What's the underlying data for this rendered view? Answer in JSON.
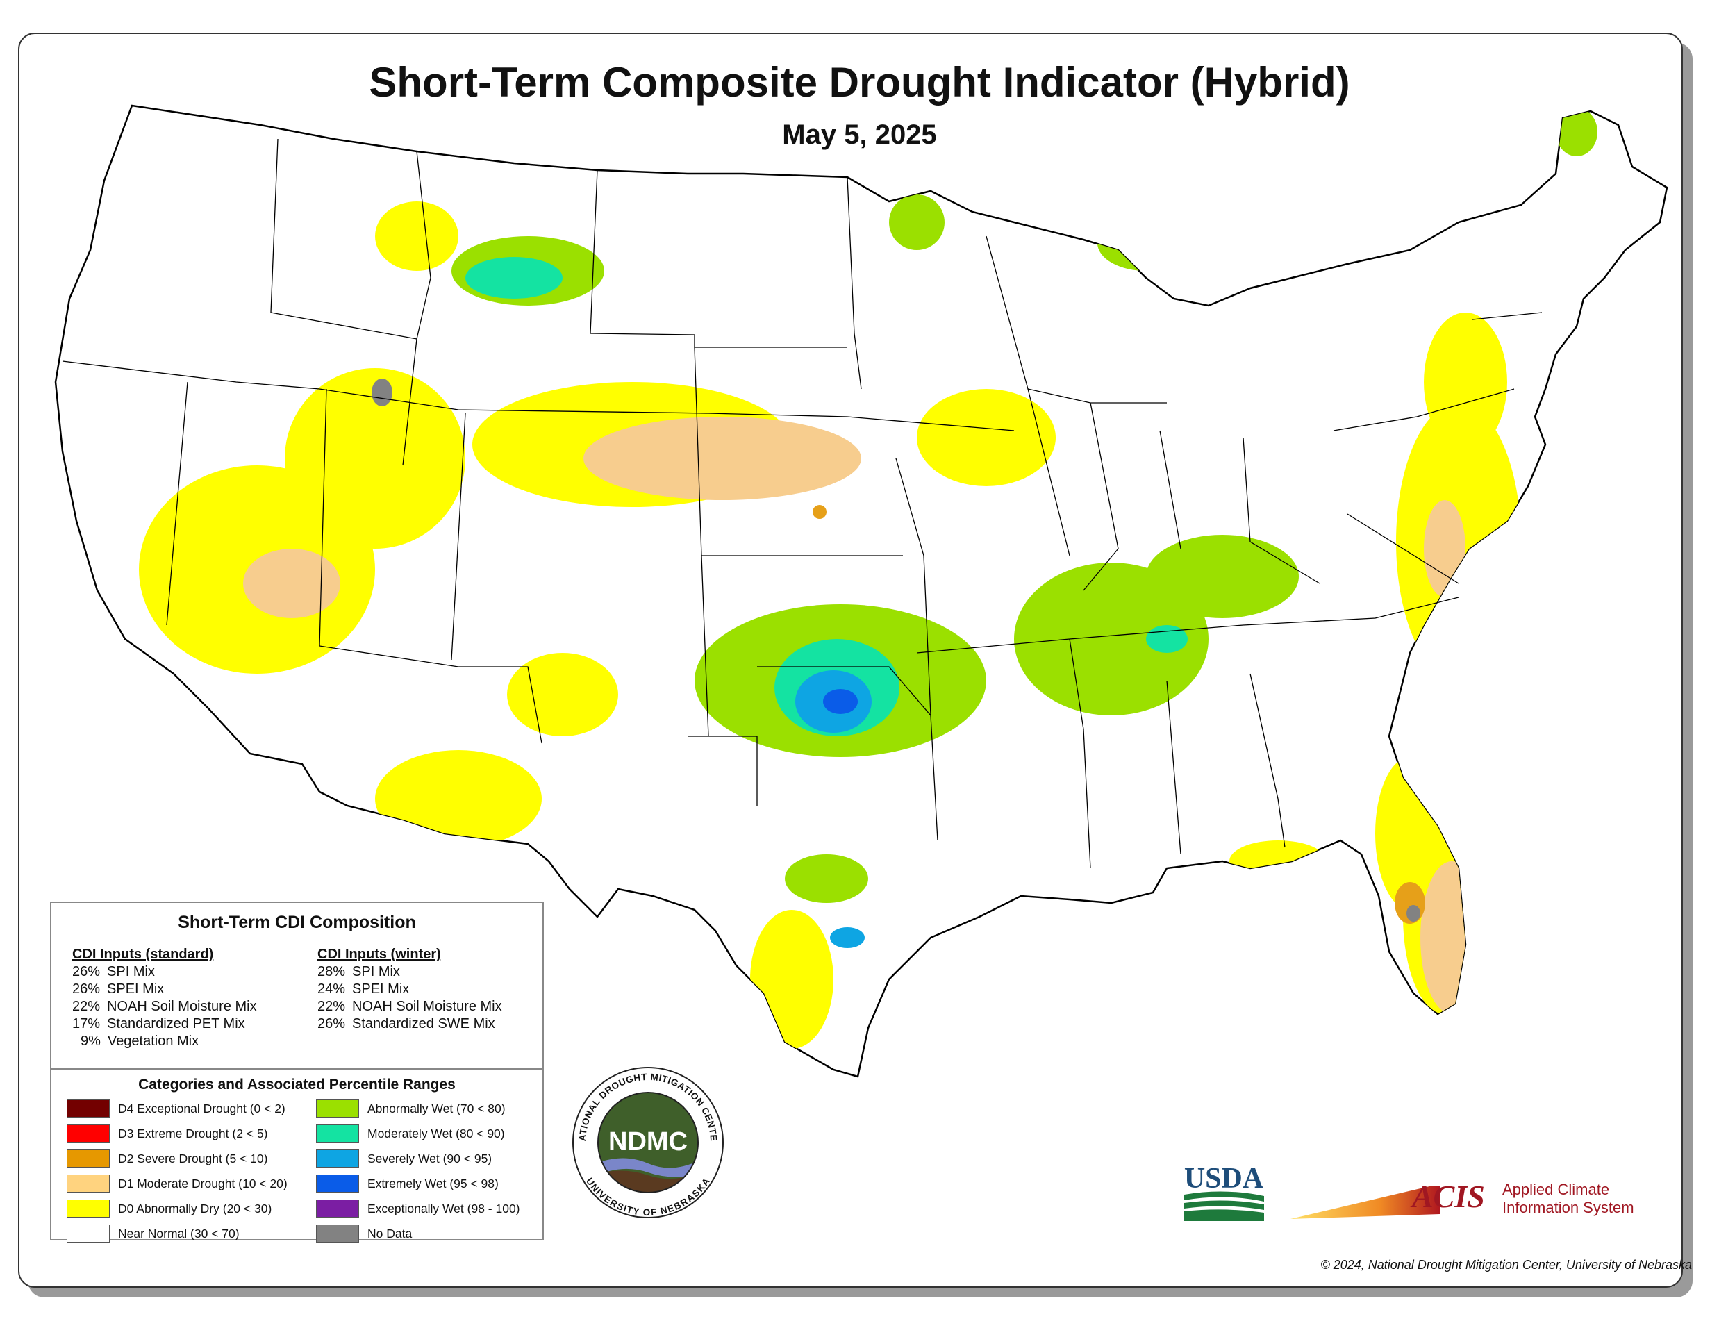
{
  "title": "Short-Term Composite Drought Indicator (Hybrid)",
  "date": "May 5, 2025",
  "composition": {
    "heading": "Short-Term CDI Composition",
    "standard": {
      "heading": "CDI Inputs (standard)",
      "rows": [
        {
          "pct": "26%",
          "label": "SPI Mix"
        },
        {
          "pct": "26%",
          "label": "SPEI Mix"
        },
        {
          "pct": "22%",
          "label": "NOAH Soil Moisture Mix"
        },
        {
          "pct": "17%",
          "label": "Standardized PET Mix"
        },
        {
          "pct": "9%",
          "label": "Vegetation Mix"
        }
      ]
    },
    "winter": {
      "heading": "CDI Inputs (winter)",
      "rows": [
        {
          "pct": "28%",
          "label": "SPI Mix"
        },
        {
          "pct": "24%",
          "label": "SPEI Mix"
        },
        {
          "pct": "22%",
          "label": "NOAH Soil Moisture Mix"
        },
        {
          "pct": "26%",
          "label": "Standardized SWE Mix"
        }
      ]
    }
  },
  "categories": {
    "heading": "Categories and Associated Percentile Ranges",
    "left": [
      {
        "label": "D4 Exceptional Drought (0 < 2)",
        "color": "#730000"
      },
      {
        "label": "D3 Extreme Drought (2 < 5)",
        "color": "#ff0000"
      },
      {
        "label": "D2 Severe Drought (5 < 10)",
        "color": "#e69800"
      },
      {
        "label": "D1 Moderate Drought (10 < 20)",
        "color": "#ffd37f"
      },
      {
        "label": "D0 Abnormally Dry (20 < 30)",
        "color": "#ffff00"
      },
      {
        "label": "Near Normal (30 < 70)",
        "color": "#ffffff"
      }
    ],
    "right": [
      {
        "label": "Abnormally Wet (70 < 80)",
        "color": "#9be000"
      },
      {
        "label": "Moderately Wet (80 < 90)",
        "color": "#14e3a2"
      },
      {
        "label": "Severely Wet (90 < 95)",
        "color": "#0ea5e3"
      },
      {
        "label": "Extremely Wet (95 < 98)",
        "color": "#0a5ce8"
      },
      {
        "label": "Exceptionally Wet (98 - 100)",
        "color": "#7b1ea3"
      },
      {
        "label": "No Data",
        "color": "#828282"
      }
    ]
  },
  "logos": {
    "ndmc": {
      "center_text": "NDMC",
      "ring_top": "NATIONAL DROUGHT MITIGATION CENTER",
      "ring_bottom": "UNIVERSITY OF NEBRASKA"
    },
    "usda": {
      "text": "USDA"
    },
    "acis": {
      "mark": "ACIS",
      "line1": "Applied Climate",
      "line2": "Information System"
    }
  },
  "copyright": "© 2024, National Drought Mitigation Center, University of Nebraska"
}
